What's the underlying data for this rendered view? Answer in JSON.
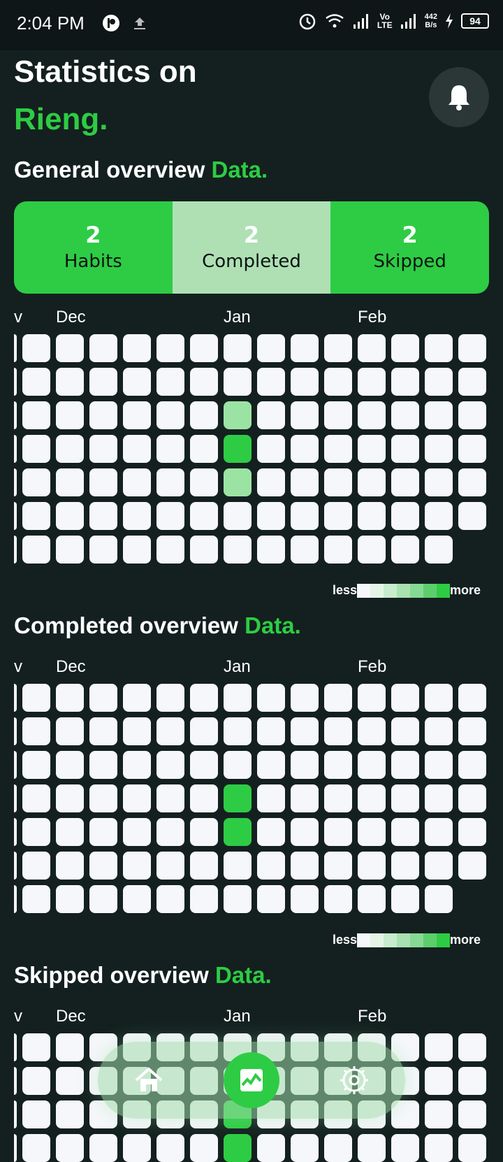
{
  "status_bar": {
    "time": "2:04 PM",
    "net_speed_top": "442",
    "net_speed_bottom": "B/s",
    "volte_top": "Vo",
    "volte_bottom": "LTE",
    "battery": "94"
  },
  "header": {
    "title_line1": "Statistics on",
    "title_line2": "Rieng."
  },
  "general": {
    "title": "General overview",
    "accent": "Data.",
    "stats": [
      {
        "value": "2",
        "label": "Habits"
      },
      {
        "value": "2",
        "label": "Completed"
      },
      {
        "value": "2",
        "label": "Skipped"
      }
    ],
    "months": [
      "v",
      "Dec",
      "Jan",
      "Feb"
    ]
  },
  "completed": {
    "title": "Completed overview",
    "accent": "Data.",
    "months": [
      "v",
      "Dec",
      "Jan",
      "Feb"
    ]
  },
  "skipped": {
    "title": "Skipped overview",
    "accent": "Data.",
    "months": [
      "v",
      "Dec",
      "Jan",
      "Feb"
    ]
  },
  "legend": {
    "less": "less",
    "more": "more"
  },
  "colors": {
    "accent": "#2ecc44",
    "background": "#13201f",
    "cell": "#f6f7fb"
  },
  "heatmap": {
    "general_active": [
      {
        "week": 6,
        "day": 2,
        "level": 1
      },
      {
        "week": 6,
        "day": 3,
        "level": 2
      },
      {
        "week": 6,
        "day": 4,
        "level": 1
      }
    ],
    "completed_active": [
      {
        "week": 6,
        "day": 3,
        "level": 2
      },
      {
        "week": 6,
        "day": 4,
        "level": 2
      }
    ],
    "skipped_active": [
      {
        "week": 6,
        "day": 2,
        "level": 2
      },
      {
        "week": 6,
        "day": 3,
        "level": 2
      }
    ]
  },
  "nav": {
    "items": [
      "home-icon",
      "chart-icon",
      "settings-icon"
    ],
    "active": "chart-icon"
  }
}
